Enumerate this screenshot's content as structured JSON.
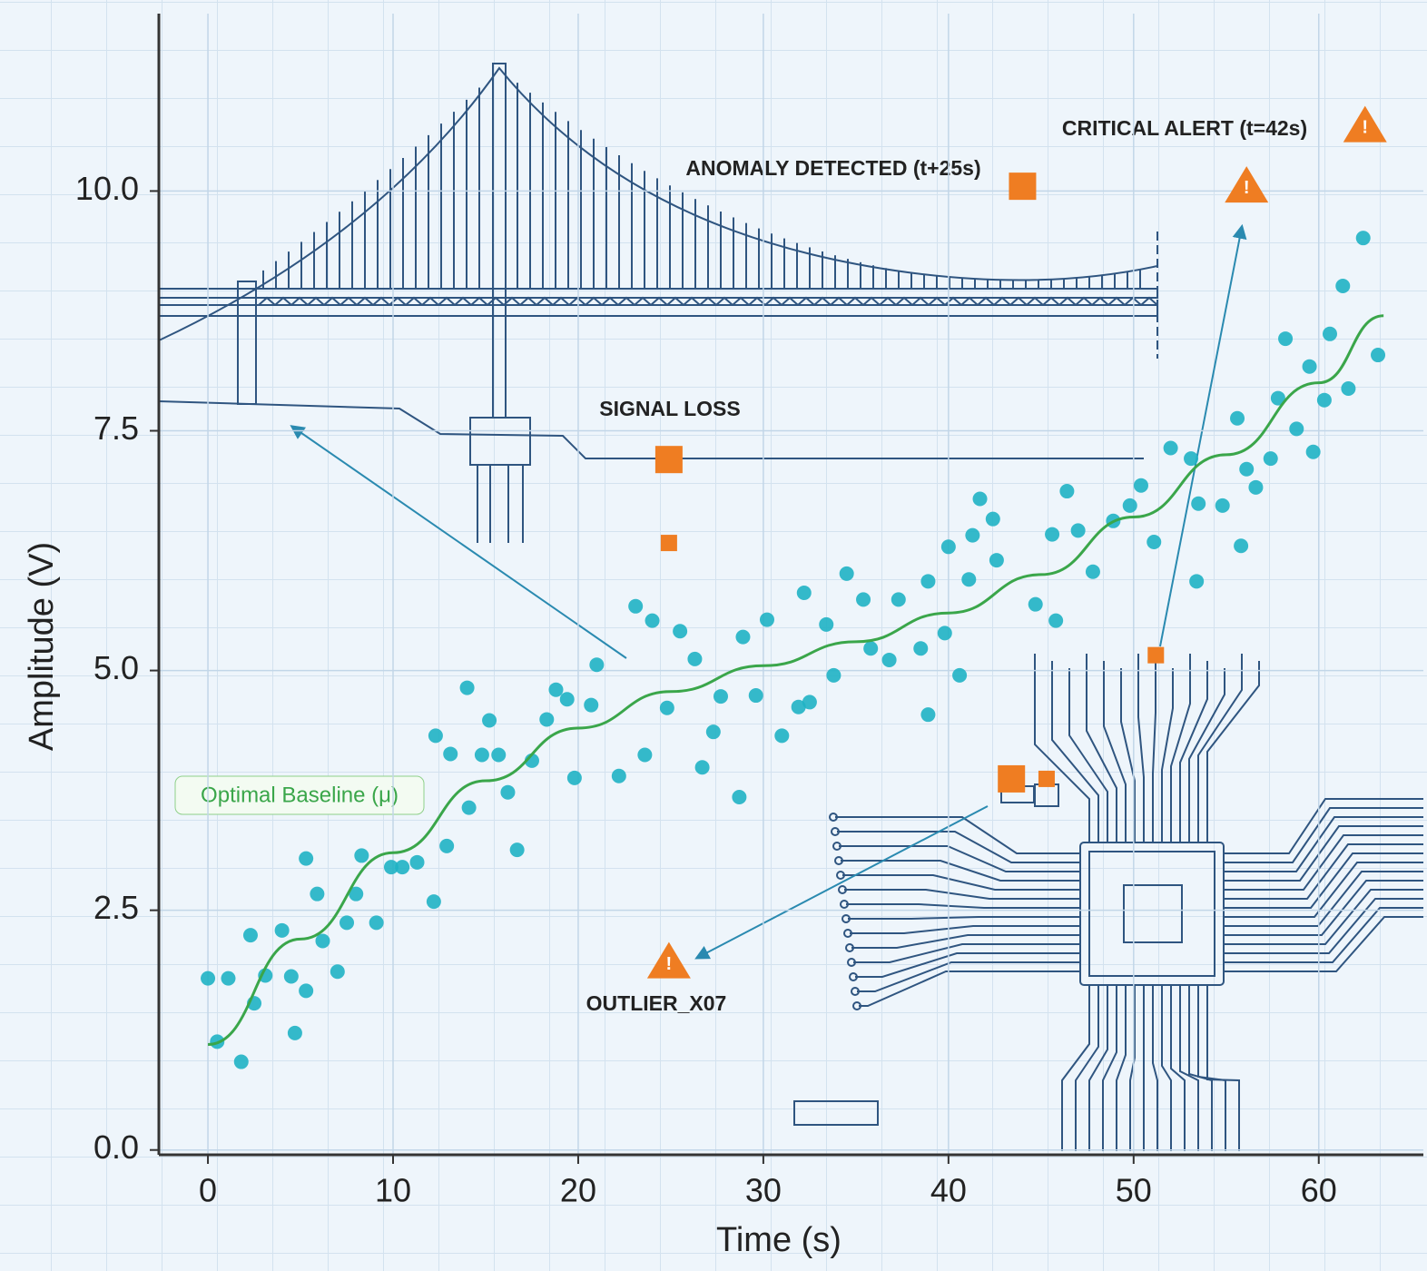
{
  "chart_data": {
    "type": "scatter",
    "x_label": "Time (s)",
    "y_label": "Amplitude (V)",
    "xlim": [
      -2.65,
      65.65
    ],
    "ylim": [
      -0.05,
      11.85
    ],
    "xticks": [
      0,
      10,
      20,
      30,
      40,
      50,
      60
    ],
    "yticks": [
      {
        "value": 0,
        "label": "0.0"
      },
      2.5,
      {
        "value": 5,
        "label": "5.0"
      },
      7.5,
      {
        "value": 10,
        "label": "10.0"
      }
    ],
    "grid": true,
    "series": [
      {
        "type": "scatter",
        "marker": "circle",
        "color": "#1fb3c4",
        "x": [
          0,
          1.1,
          1.8,
          0.5,
          2.3,
          3.1,
          2.5,
          4.0,
          4.5,
          4.7,
          5.3,
          5.3,
          5.9,
          6.2,
          7.0,
          7.5,
          8.0,
          8.3,
          9.1,
          9.9,
          10.5,
          11.3,
          12.2,
          12.3,
          12.9,
          13.1,
          14.0,
          14.1,
          14.8,
          15.2,
          15.7,
          16.2,
          16.7,
          17.5,
          18.3,
          18.8,
          19.4,
          19.8,
          20.7,
          21.0,
          22.2,
          23.1,
          23.6,
          24.0,
          24.8,
          25.5,
          26.3,
          26.7,
          27.3,
          27.7,
          28.7,
          28.9,
          29.6,
          30.2,
          31.0,
          31.9,
          32.2,
          32.5,
          33.4,
          33.8,
          34.5,
          35.4,
          35.8,
          36.8,
          37.3,
          38.5,
          38.9,
          38.9,
          39.8,
          40.0,
          40.6,
          41.1,
          41.3,
          41.7,
          42.4,
          42.6,
          44.7,
          45.6,
          45.8,
          46.4,
          47.0,
          47.8,
          48.9,
          49.8,
          50.4,
          51.1,
          52.0,
          53.1,
          53.4,
          53.5,
          54.8,
          55.6,
          55.8,
          56.1,
          56.6,
          57.4,
          57.8,
          58.2,
          58.8,
          59.5,
          59.7,
          60.3,
          60.6,
          61.3,
          61.6,
          62.4,
          63.2
        ],
        "values": [
          1.79,
          1.79,
          0.92,
          1.13,
          2.24,
          1.82,
          1.53,
          2.29,
          1.81,
          1.22,
          3.04,
          1.66,
          2.67,
          2.18,
          1.86,
          2.37,
          2.67,
          3.07,
          2.37,
          2.95,
          2.95,
          3.0,
          2.59,
          4.32,
          3.17,
          4.13,
          4.82,
          3.57,
          4.12,
          4.48,
          4.12,
          3.73,
          3.13,
          4.06,
          4.49,
          4.8,
          4.7,
          3.88,
          4.64,
          5.06,
          3.9,
          5.67,
          4.12,
          5.52,
          4.61,
          5.41,
          5.12,
          3.99,
          4.36,
          4.73,
          3.68,
          5.35,
          4.74,
          5.53,
          4.32,
          4.62,
          5.81,
          4.67,
          5.48,
          4.95,
          6.01,
          5.74,
          5.23,
          5.11,
          5.74,
          5.23,
          4.54,
          5.93,
          5.39,
          6.29,
          4.95,
          5.95,
          6.41,
          6.79,
          6.58,
          6.15,
          5.69,
          6.42,
          5.52,
          6.87,
          6.46,
          6.03,
          6.56,
          6.72,
          6.93,
          6.34,
          7.32,
          7.21,
          5.93,
          6.74,
          6.72,
          7.63,
          6.3,
          7.1,
          6.91,
          7.21,
          7.84,
          8.46,
          7.52,
          8.17,
          7.28,
          7.82,
          8.51,
          9.01,
          7.94,
          9.51,
          8.29
        ]
      },
      {
        "type": "line",
        "color": "#3aa64a",
        "x": [
          0,
          5,
          10,
          15,
          20,
          25,
          30,
          35,
          40,
          45,
          50,
          55,
          60,
          63.5
        ],
        "values": [
          1.1,
          2.2,
          3.1,
          3.85,
          4.4,
          4.78,
          5.05,
          5.3,
          5.6,
          6.0,
          6.6,
          7.25,
          8.0,
          8.7
        ]
      },
      {
        "type": "scatter",
        "marker": "square",
        "color": "#ef7d22",
        "x": [
          44.0,
          24.9,
          43.4
        ],
        "values": [
          10.05,
          7.2,
          3.87
        ]
      },
      {
        "type": "scatter",
        "marker": "small-square",
        "color": "#ef7d22",
        "x": [
          24.9,
          51.2,
          45.3
        ],
        "values": [
          6.33,
          5.16,
          3.87
        ]
      },
      {
        "type": "scatter",
        "marker": "triangle",
        "color": "#ef7d22",
        "x": [
          56.1,
          24.9,
          62.5
        ],
        "values": [
          10.05,
          1.96,
          10.68
        ]
      }
    ],
    "annotations": [
      "ANOMALY DETECTED (t+25s)",
      "CRITICAL ALERT (t=42s)",
      "SIGNAL LOSS",
      "OUTLIER_X07",
      "Optimal Baseline (μ)"
    ]
  }
}
